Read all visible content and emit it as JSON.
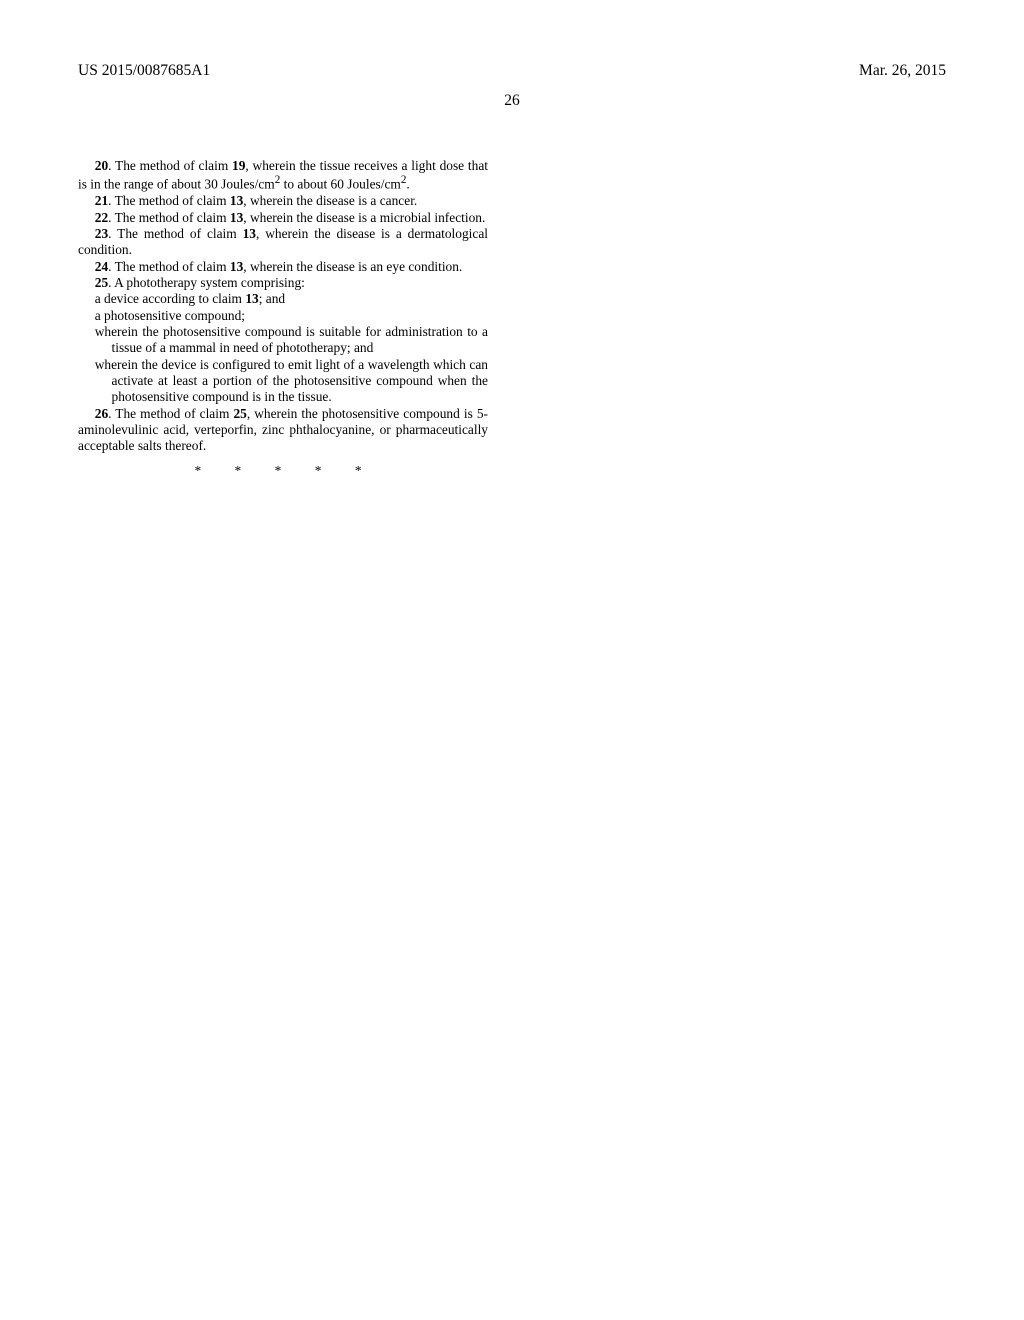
{
  "header": {
    "pub_num": "US 2015/0087685A1",
    "date": "Mar. 26, 2015",
    "page_num": "26"
  },
  "claims": {
    "c20": {
      "num": "20",
      "lead": ". The method of claim ",
      "ref": "19",
      "tail": ", wherein the tissue receives a light dose that is in the range of about 30 Joules/cm",
      "sup": "2",
      "tail2": " to about 60 Joules/cm",
      "sup2": "2",
      "tail3": "."
    },
    "c21": {
      "num": "21",
      "lead": ". The method of claim ",
      "ref": "13",
      "tail": ", wherein the disease is a cancer."
    },
    "c22": {
      "num": "22",
      "lead": ". The method of claim ",
      "ref": "13",
      "tail": ", wherein the disease is a microbial infection."
    },
    "c23": {
      "num": "23",
      "lead": ". The method of claim ",
      "ref": "13",
      "tail": ", wherein the disease is a dermatological condition."
    },
    "c24": {
      "num": "24",
      "lead": ". The method of claim ",
      "ref": "13",
      "tail": ", wherein the disease is an eye condition."
    },
    "c25": {
      "num": "25",
      "lead": ". A phototherapy system comprising:",
      "line2a": "a device according to claim ",
      "line2ref": "13",
      "line2b": "; and",
      "line3": "a photosensitive compound;",
      "line4": "wherein the photosensitive compound is suitable for administration to a tissue of a mammal in need of phototherapy; and",
      "line5": "wherein the device is configured to emit light of a wavelength which can activate at least a portion of the photosensitive compound when the photosensitive compound is in the tissue."
    },
    "c26": {
      "num": "26",
      "lead": ". The method of claim ",
      "ref": "25",
      "tail": ", wherein the photosensitive compound is 5-aminolevulinic acid, verteporfin, zinc phthalocyanine, or pharmaceutically acceptable salts thereof."
    },
    "stars": "* * * * *"
  }
}
